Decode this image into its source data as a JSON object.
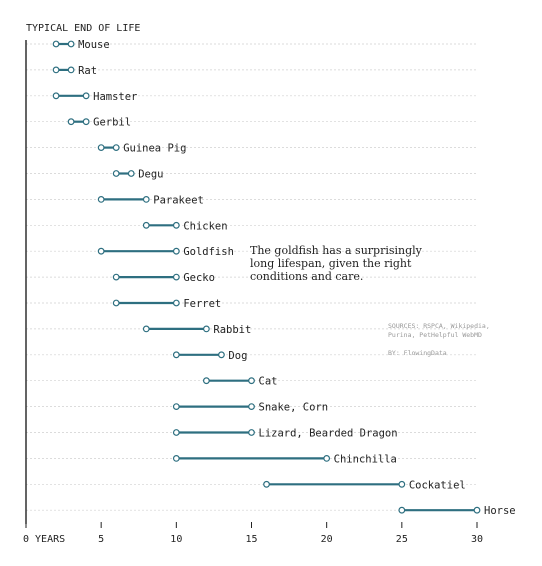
{
  "chart_data": {
    "type": "dumbbell",
    "title": "TYPICAL END OF LIFE",
    "x_unit_label": "YEARS",
    "xlim": [
      0,
      30
    ],
    "x_ticks": [
      0,
      5,
      10,
      15,
      20,
      25,
      30
    ],
    "x_tick_labels": [
      "0 YEARS",
      "5",
      "10",
      "15",
      "20",
      "25",
      "30"
    ],
    "grid": "horizontal-dashed",
    "categories": [
      "Mouse",
      "Rat",
      "Hamster",
      "Gerbil",
      "Guinea Pig",
      "Degu",
      "Parakeet",
      "Chicken",
      "Goldfish",
      "Gecko",
      "Ferret",
      "Rabbit",
      "Dog",
      "Cat",
      "Snake, Corn",
      "Lizard, Bearded Dragon",
      "Chinchilla",
      "Cockatiel",
      "Horse"
    ],
    "ranges": [
      {
        "animal": "Mouse",
        "min": 2,
        "max": 3
      },
      {
        "animal": "Rat",
        "min": 2,
        "max": 3
      },
      {
        "animal": "Hamster",
        "min": 2,
        "max": 4
      },
      {
        "animal": "Gerbil",
        "min": 3,
        "max": 4
      },
      {
        "animal": "Guinea Pig",
        "min": 5,
        "max": 6
      },
      {
        "animal": "Degu",
        "min": 6,
        "max": 7
      },
      {
        "animal": "Parakeet",
        "min": 5,
        "max": 8
      },
      {
        "animal": "Chicken",
        "min": 8,
        "max": 10
      },
      {
        "animal": "Goldfish",
        "min": 5,
        "max": 10
      },
      {
        "animal": "Gecko",
        "min": 6,
        "max": 10
      },
      {
        "animal": "Ferret",
        "min": 6,
        "max": 10
      },
      {
        "animal": "Rabbit",
        "min": 8,
        "max": 12
      },
      {
        "animal": "Dog",
        "min": 10,
        "max": 13
      },
      {
        "animal": "Cat",
        "min": 12,
        "max": 15
      },
      {
        "animal": "Snake, Corn",
        "min": 10,
        "max": 15
      },
      {
        "animal": "Lizard, Bearded Dragon",
        "min": 10,
        "max": 15
      },
      {
        "animal": "Chinchilla",
        "min": 10,
        "max": 20
      },
      {
        "animal": "Cockatiel",
        "min": 16,
        "max": 25
      },
      {
        "animal": "Horse",
        "min": 25,
        "max": 30
      }
    ],
    "annotation": {
      "target": "Goldfish",
      "lines": [
        "The goldfish has a surprisingly",
        "long lifespan, given the right",
        "conditions and care."
      ]
    },
    "sources": {
      "lines": [
        "SOURCES: RSPCA, Wikipedia,",
        "Purina, PetHelpful WebMD"
      ],
      "byline": "BY: FlowingData"
    },
    "colors": {
      "bar": "#2e6f80",
      "dot_fill": "#ffffff",
      "text": "#222222",
      "grid": "#d0d0d0",
      "note": "#999999",
      "axis": "#222222"
    }
  }
}
